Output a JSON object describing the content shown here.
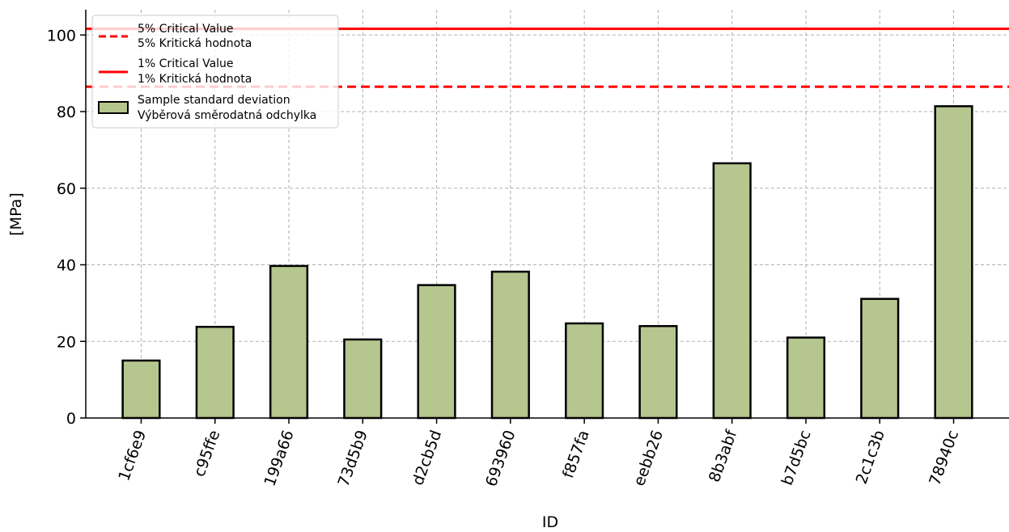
{
  "chart_data": {
    "type": "bar",
    "xlabel": "ID",
    "ylabel": "[MPa]",
    "categories": [
      "1cf6e9",
      "c95ffe",
      "199a66",
      "73d5b9",
      "d2cb5d",
      "693960",
      "f857fa",
      "eebb26",
      "8b3abf",
      "b7d5bc",
      "2c1c3b",
      "78940c"
    ],
    "series": [
      {
        "name": "Sample standard deviation\nVýběrová směrodatná odchylka",
        "values": [
          15.0,
          23.8,
          39.7,
          20.5,
          34.7,
          38.2,
          24.7,
          24.0,
          66.5,
          21.0,
          31.1,
          81.4
        ],
        "color": "#b5c68e",
        "edge_color": "#000000"
      }
    ],
    "reference_lines": [
      {
        "name": "5% Critical Value\n5% Kritická hodnota",
        "value": 86.5,
        "style": "dashed",
        "color": "#ff0000"
      },
      {
        "name": "1% Critical Value\n1% Kritická hodnota",
        "value": 101.6,
        "style": "solid",
        "color": "#ff0000"
      }
    ],
    "ylim": [
      0,
      106.6
    ],
    "yticks": [
      0,
      20,
      40,
      60,
      80,
      100
    ],
    "grid": true,
    "legend_position": "top-left"
  }
}
